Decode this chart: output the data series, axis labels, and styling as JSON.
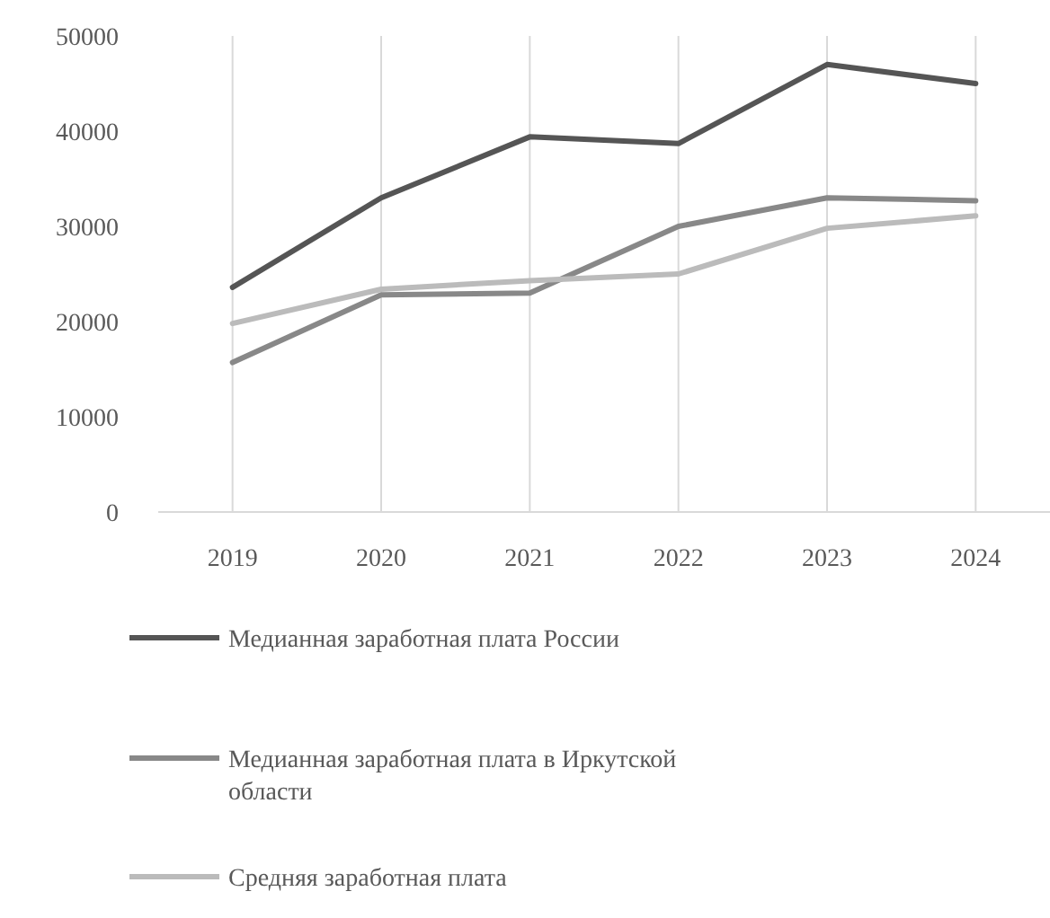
{
  "chart_data": {
    "type": "line",
    "categories": [
      "2019",
      "2020",
      "2021",
      "2022",
      "2023",
      "2024"
    ],
    "series": [
      {
        "name": "Медианная заработная плата России",
        "color": "#555555",
        "values": [
          23600,
          33000,
          39400,
          38700,
          47000,
          45000
        ]
      },
      {
        "name": "Медианная заработная плата в Иркутской области",
        "color": "#888888",
        "values": [
          15700,
          22800,
          23000,
          30000,
          33000,
          32700
        ]
      },
      {
        "name": "Средняя заработная плата",
        "color": "#bbbbbb",
        "values": [
          19800,
          23400,
          24300,
          25000,
          29800,
          31100
        ]
      }
    ],
    "ylim": [
      0,
      50000
    ],
    "yticks": [
      0,
      10000,
      20000,
      30000,
      40000,
      50000
    ],
    "grid": "x",
    "legend": "bottom",
    "marker": "none",
    "line_style": "solid"
  }
}
